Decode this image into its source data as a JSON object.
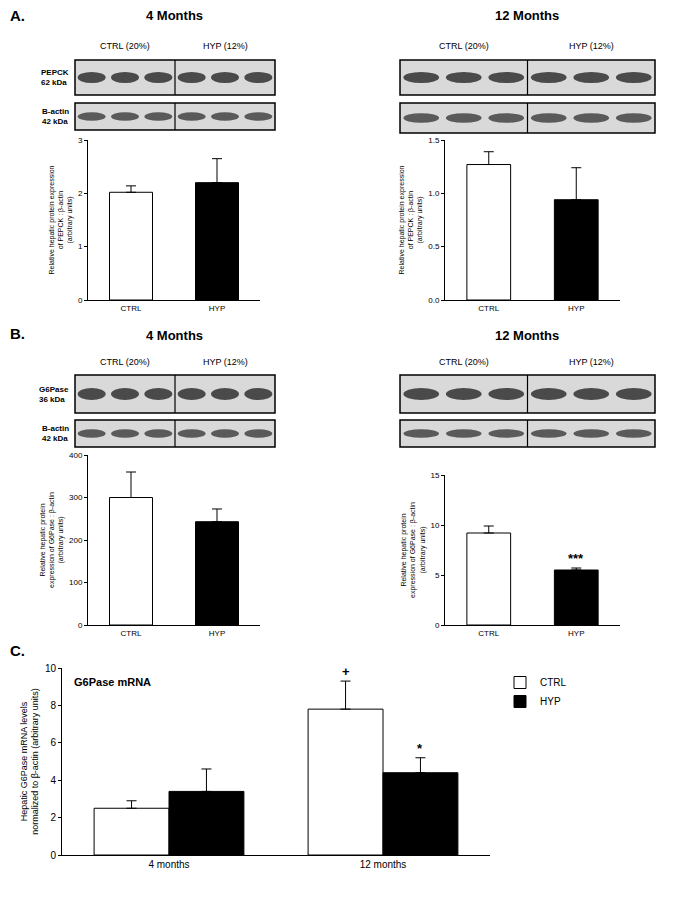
{
  "chart_data": [
    {
      "type": "bar",
      "panel": "A.",
      "title": "4 Months",
      "blot": {
        "lanes": [
          "CTRL (20%)",
          "HYP (12%)"
        ],
        "row_labels": [
          [
            "PEPCK",
            "62 kDa"
          ],
          [
            "B-actin",
            "42 kDa"
          ]
        ]
      },
      "categories": [
        "CTRL",
        "HYP"
      ],
      "values": [
        2.02,
        2.2
      ],
      "error": [
        0.12,
        0.45
      ],
      "colors": [
        "#ffffff",
        "#000000"
      ],
      "ylabel": [
        "Relative hepatic protein expression",
        "of PEPCK : β-actin",
        "(arbitrary units)"
      ],
      "ylim": [
        0,
        3
      ],
      "yticks": [
        0,
        1,
        2,
        3
      ],
      "grid": false
    },
    {
      "type": "bar",
      "title": "12 Months",
      "blot": {
        "lanes": [
          "CTRL (20%)",
          "HYP (12%)"
        ]
      },
      "categories": [
        "CTRL",
        "HYP"
      ],
      "values": [
        1.27,
        0.94
      ],
      "error": [
        0.12,
        0.3
      ],
      "colors": [
        "#ffffff",
        "#000000"
      ],
      "ylabel": [
        "Relative hepatic protein expression",
        "of PEPCK : β-actin",
        "(arbitrary units)"
      ],
      "ylim": [
        0,
        1.5
      ],
      "yticks": [
        {
          "value": 0,
          "label": "0.0"
        },
        {
          "value": 0.5,
          "label": "0.5"
        },
        {
          "value": 1,
          "label": "1.0"
        },
        1.5
      ],
      "grid": false
    },
    {
      "type": "bar",
      "panel": "B.",
      "title": "4 Months",
      "blot": {
        "lanes": [
          "CTRL (20%)",
          "HYP (12%)"
        ],
        "row_labels": [
          [
            "G6Pase",
            "36 kDa"
          ],
          [
            "B-actin",
            "42 kDa"
          ]
        ]
      },
      "categories": [
        "CTRL",
        "HYP"
      ],
      "values": [
        300,
        243
      ],
      "error": [
        60,
        30
      ],
      "colors": [
        "#ffffff",
        "#000000"
      ],
      "ylabel": [
        "Relative hepatic protein",
        "expression of G6Pase : β-actin",
        "(arbitrary units)"
      ],
      "ylim": [
        0,
        400
      ],
      "yticks": [
        0,
        100,
        200,
        300,
        400
      ],
      "grid": false
    },
    {
      "type": "bar",
      "title": "12 Months",
      "blot": {
        "lanes": [
          "CTRL (20%)",
          "HYP (12%)"
        ]
      },
      "categories": [
        "CTRL",
        "HYP"
      ],
      "values": [
        9.2,
        5.5
      ],
      "error": [
        0.7,
        0.2
      ],
      "colors": [
        "#ffffff",
        "#000000"
      ],
      "ylabel": [
        "Relative hepatic protein",
        "expression of G6Pase : β-actin",
        "(arbitrary units)"
      ],
      "ylim": [
        0,
        15
      ],
      "yticks": [
        0,
        5,
        10,
        15
      ],
      "grid": false,
      "annotations": [
        {
          "text": "***",
          "category": "HYP"
        }
      ]
    },
    {
      "type": "bar",
      "panel": "C.",
      "title": "G6Pase mRNA",
      "categories": [
        "4 months",
        "12 months"
      ],
      "series": [
        {
          "name": "CTRL",
          "color": "#ffffff",
          "values": [
            2.5,
            7.8
          ],
          "error": [
            0.4,
            1.5
          ]
        },
        {
          "name": "HYP",
          "color": "#000000",
          "values": [
            3.4,
            4.4
          ],
          "error": [
            1.2,
            0.8
          ]
        }
      ],
      "ylabel": [
        "Hepatic G6Pase mRNA levels",
        "normalized to β-actin (arbitrary units)"
      ],
      "ylim": [
        0,
        10
      ],
      "yticks": [
        0,
        2,
        4,
        6,
        8,
        10
      ],
      "grid": false,
      "legend": "right",
      "annotations": [
        {
          "text": "+",
          "category": "12 months",
          "series": "CTRL"
        },
        {
          "text": "*",
          "category": "12 months",
          "series": "HYP"
        }
      ]
    }
  ]
}
